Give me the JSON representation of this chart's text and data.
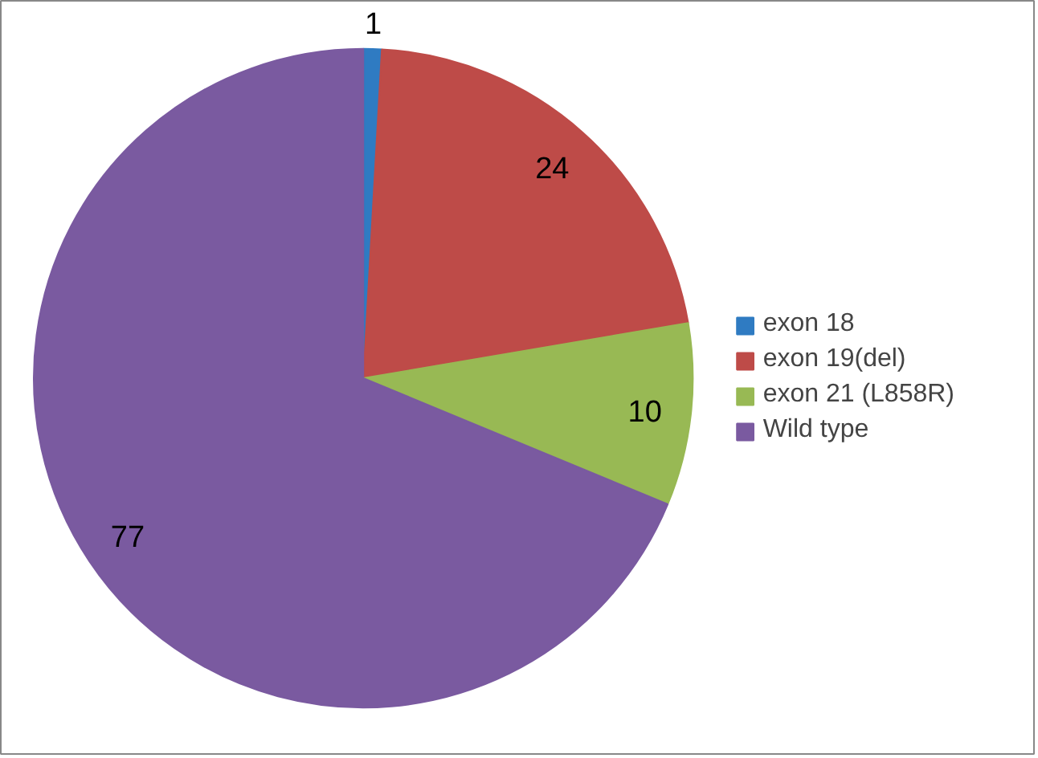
{
  "chart_data": {
    "type": "pie",
    "categories": [
      "exon 18",
      "exon 19(del)",
      "exon 21 (L858R)",
      "Wild type"
    ],
    "values": [
      1,
      24,
      10,
      77
    ],
    "colors": [
      "#2f7bc2",
      "#be4b48",
      "#98b954",
      "#7a5aa0"
    ],
    "data_labels": true,
    "legend": "right"
  }
}
